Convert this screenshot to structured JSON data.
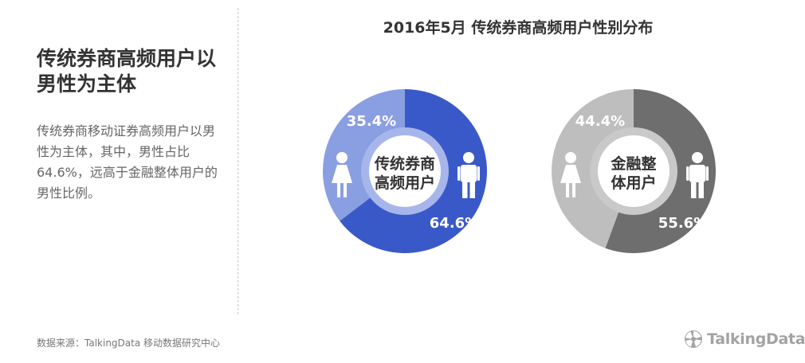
{
  "left_panel": {
    "heading": "传统券商高频用户以男性为主体",
    "body": "传统券商移动证券高频用户以男性为主体，其中，男性占比64.6%，远高于金融整体用户的男性比例。"
  },
  "title": "2016年5月  传统券商高频用户性别分布",
  "source": "数据来源：TalkingData 移动数据研究中心",
  "logo": {
    "text": "TalkingData",
    "icon": "talkingdata-logo-icon"
  },
  "icons": {
    "female": "female-icon",
    "male": "male-icon"
  },
  "chart_data": [
    {
      "type": "pie",
      "center_label": [
        "传统券商",
        "高频用户"
      ],
      "slices": [
        {
          "name": "male",
          "value": 64.6,
          "label": "64.6%",
          "color": "#3a59c9"
        },
        {
          "name": "female",
          "value": 35.4,
          "label": "35.4%",
          "color": "#8a9ee2"
        }
      ],
      "ring_color": "#a7b6ea"
    },
    {
      "type": "pie",
      "center_label": [
        "金融整",
        "体用户"
      ],
      "slices": [
        {
          "name": "male",
          "value": 55.6,
          "label": "55.6%",
          "color": "#6e6e6e"
        },
        {
          "name": "female",
          "value": 44.4,
          "label": "44.4%",
          "color": "#bebebe"
        }
      ],
      "ring_color": "#c9c9c9"
    }
  ]
}
